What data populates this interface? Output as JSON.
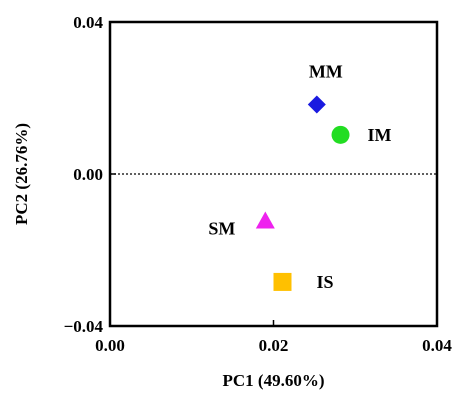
{
  "chart_data": {
    "type": "scatter",
    "xlabel": "PC1 (49.60%)",
    "ylabel": "PC2 (26.76%)",
    "xlim": [
      0.0,
      0.04
    ],
    "ylim": [
      -0.04,
      0.04
    ],
    "x_ticks": [
      0.0,
      0.02,
      0.04
    ],
    "x_tick_labels": [
      "0.00",
      "0.02",
      "0.04"
    ],
    "y_ticks": [
      -0.04,
      0.0,
      0.04
    ],
    "y_tick_labels": [
      "−0.04",
      "0.00",
      "0.04"
    ],
    "reference_line": {
      "y": 0.0,
      "style": "dotted"
    },
    "grid": false,
    "points": [
      {
        "label": "MM",
        "x": 0.0253,
        "y": 0.0183,
        "marker": "diamond",
        "color": "#1a1ae0"
      },
      {
        "label": "IM",
        "x": 0.0282,
        "y": 0.0103,
        "marker": "circle",
        "color": "#22dd22"
      },
      {
        "label": "SM",
        "x": 0.019,
        "y": -0.0125,
        "marker": "triangle",
        "color": "#ee22ee"
      },
      {
        "label": "IS",
        "x": 0.0211,
        "y": -0.0284,
        "marker": "square",
        "color": "#ffc000"
      }
    ]
  }
}
